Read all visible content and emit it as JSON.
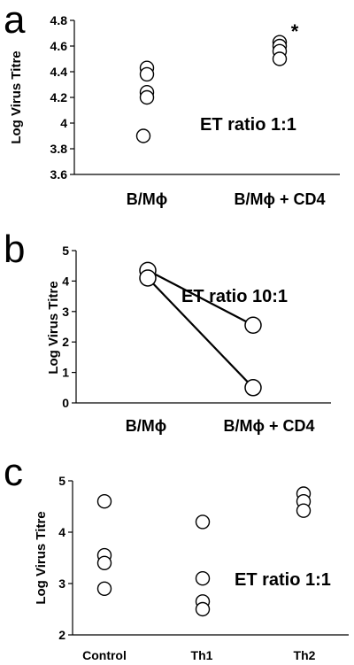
{
  "chart_data": [
    {
      "panel": "a",
      "type": "scatter",
      "ylabel": "Log Virus Titre",
      "categories": [
        "B/Mϕ",
        "B/Mϕ + CD4"
      ],
      "ylim": [
        3.6,
        4.8
      ],
      "yticks": [
        3.6,
        3.8,
        4,
        4.2,
        4.4,
        4.6,
        4.8
      ],
      "points": [
        {
          "category": 0,
          "y": 4.43
        },
        {
          "category": 0,
          "y": 4.38
        },
        {
          "category": 0,
          "y": 4.24
        },
        {
          "category": 0,
          "y": 4.2
        },
        {
          "category": 0,
          "y": 3.9
        },
        {
          "category": 1,
          "y": 4.63
        },
        {
          "category": 1,
          "y": 4.6
        },
        {
          "category": 1,
          "y": 4.56
        },
        {
          "category": 1,
          "y": 4.5
        }
      ],
      "annotations": [
        "ET ratio 1:1"
      ],
      "significance_marker": {
        "category": 1,
        "text": "*"
      },
      "grid": false
    },
    {
      "panel": "b",
      "type": "line",
      "ylabel": "Log Virus Titre",
      "categories": [
        "B/Mϕ",
        "B/Mϕ + CD4"
      ],
      "ylim": [
        0,
        5
      ],
      "yticks": [
        0,
        1,
        2,
        3,
        4,
        5
      ],
      "series": [
        {
          "values": [
            4.35,
            2.55
          ]
        },
        {
          "values": [
            4.1,
            0.5
          ]
        }
      ],
      "annotations": [
        "ET ratio 10:1"
      ],
      "grid": false
    },
    {
      "panel": "c",
      "type": "scatter",
      "ylabel": "Log Virus Titre",
      "categories": [
        "Control",
        "Th1",
        "Th2"
      ],
      "ylim": [
        2,
        5
      ],
      "yticks": [
        2,
        3,
        4,
        5
      ],
      "points": [
        {
          "category": 0,
          "y": 4.6
        },
        {
          "category": 0,
          "y": 3.55
        },
        {
          "category": 0,
          "y": 3.4
        },
        {
          "category": 0,
          "y": 2.9
        },
        {
          "category": 1,
          "y": 4.2
        },
        {
          "category": 1,
          "y": 3.1
        },
        {
          "category": 1,
          "y": 2.65
        },
        {
          "category": 1,
          "y": 2.5
        },
        {
          "category": 2,
          "y": 4.75
        },
        {
          "category": 2,
          "y": 4.6
        },
        {
          "category": 2,
          "y": 4.42
        }
      ],
      "annotations": [
        "ET ratio 1:1"
      ],
      "grid": false
    }
  ]
}
